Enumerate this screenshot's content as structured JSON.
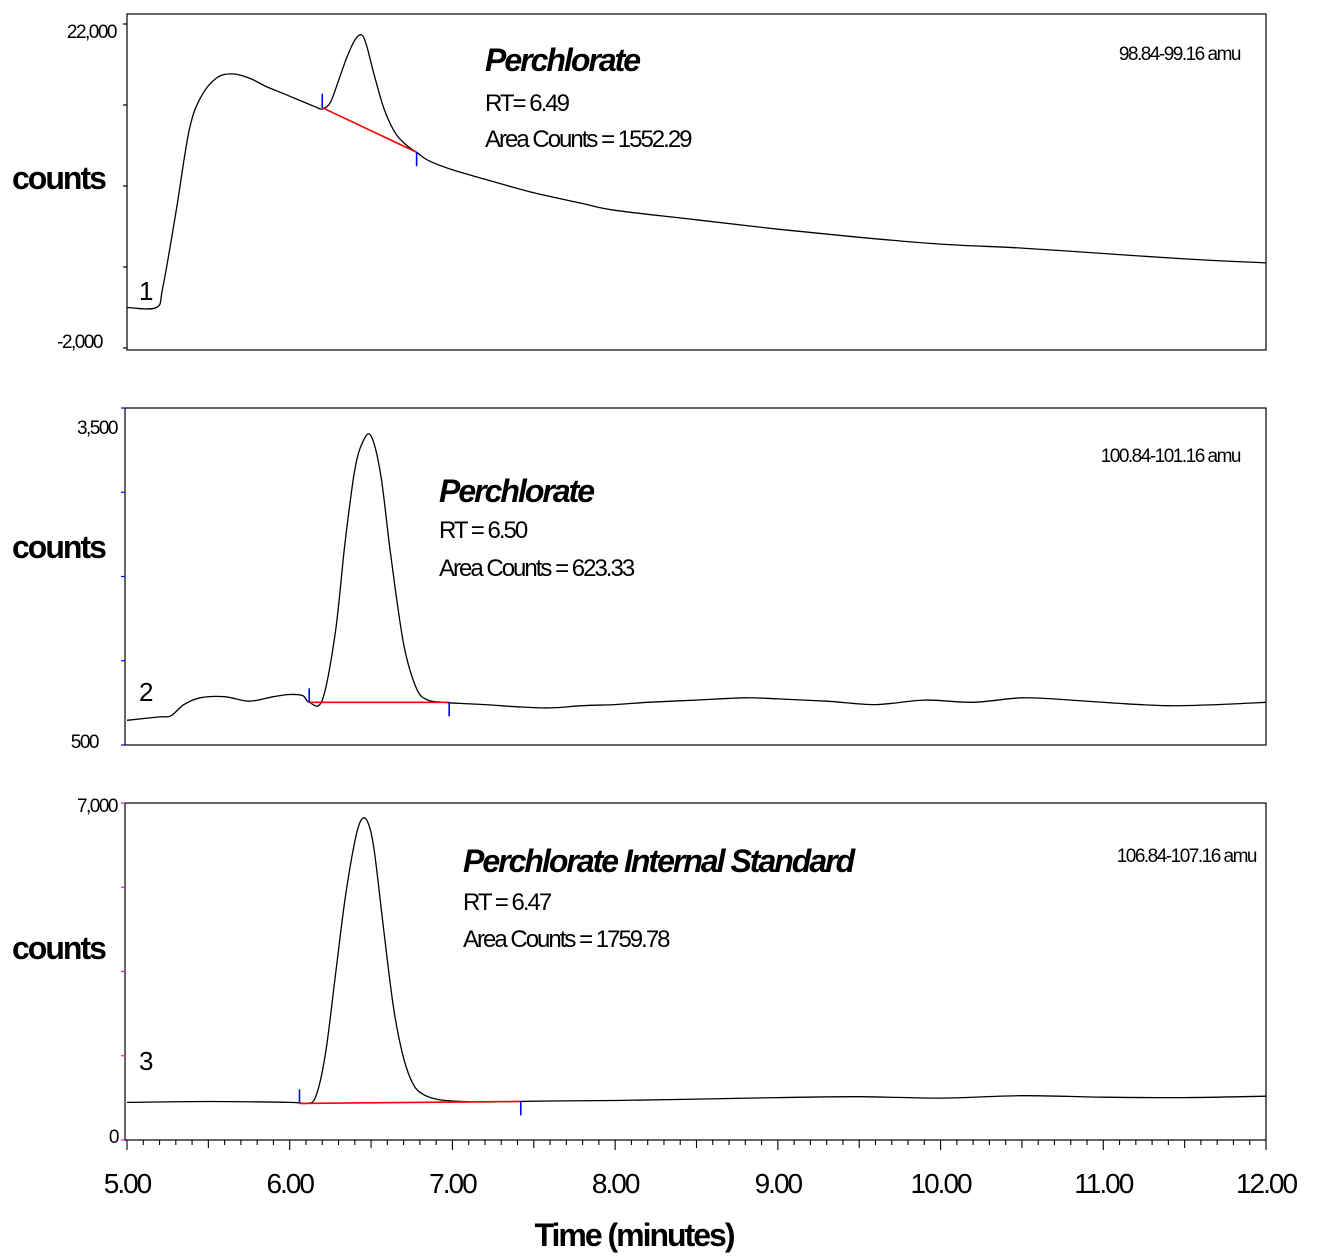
{
  "chart_data": [
    {
      "type": "line",
      "trace_number": "1",
      "mass_range": "98.84-99.16 amu",
      "ylabel": "counts",
      "ylim": [
        -2000,
        22000
      ],
      "ytick_labels": [
        "22,000",
        "-2,000"
      ],
      "xlim": [
        5.0,
        12.0
      ],
      "peak": {
        "name": "Perchlorate",
        "rt_text": "RT=  6.49",
        "area_text": "Area Counts = 1552.29",
        "start": 6.2,
        "end": 6.78,
        "baseline_start": 15800,
        "baseline_end": 12500
      },
      "x": [
        5.0,
        5.18,
        5.22,
        5.3,
        5.38,
        5.45,
        5.55,
        5.65,
        5.75,
        5.85,
        5.95,
        6.05,
        6.15,
        6.2,
        6.25,
        6.3,
        6.35,
        6.4,
        6.44,
        6.47,
        6.52,
        6.58,
        6.65,
        6.72,
        6.78,
        6.85,
        7.0,
        7.2,
        7.5,
        7.8,
        8.0,
        8.5,
        9.0,
        9.5,
        10.0,
        10.5,
        11.0,
        11.5,
        12.0
      ],
      "values": [
        1000,
        1000,
        2500,
        8000,
        14000,
        16500,
        18000,
        18300,
        18000,
        17400,
        16900,
        16400,
        15900,
        15700,
        16200,
        17800,
        19500,
        20800,
        21200,
        20500,
        18200,
        15700,
        13900,
        13000,
        12500,
        11900,
        11200,
        10500,
        9500,
        8700,
        8200,
        7500,
        6800,
        6200,
        5700,
        5400,
        5000,
        4600,
        4300
      ]
    },
    {
      "type": "line",
      "trace_number": "2",
      "mass_range": "100.84-101.16 amu",
      "ylabel": "counts",
      "ylim": [
        500,
        3500
      ],
      "ytick_labels": [
        "3,500",
        "500"
      ],
      "xlim": [
        5.0,
        12.0
      ],
      "peak": {
        "name": "Perchlorate",
        "rt_text": "RT = 6.50",
        "area_text": "Area Counts = 623.33",
        "start": 6.12,
        "end": 6.98,
        "baseline_start": 880,
        "baseline_end": 880
      },
      "x": [
        5.0,
        5.2,
        5.27,
        5.35,
        5.45,
        5.6,
        5.75,
        5.9,
        6.0,
        6.08,
        6.12,
        6.2,
        6.28,
        6.34,
        6.4,
        6.45,
        6.5,
        6.56,
        6.62,
        6.7,
        6.78,
        6.85,
        6.95,
        7.05,
        7.2,
        7.4,
        7.6,
        7.8,
        8.0,
        8.2,
        8.5,
        8.8,
        9.0,
        9.3,
        9.6,
        9.9,
        10.2,
        10.5,
        10.8,
        11.1,
        11.4,
        11.7,
        12.0
      ],
      "values": [
        720,
        750,
        760,
        860,
        920,
        930,
        890,
        930,
        950,
        940,
        880,
        900,
        1500,
        2300,
        2950,
        3200,
        3250,
        2900,
        2200,
        1400,
        1000,
        900,
        880,
        870,
        860,
        840,
        830,
        850,
        860,
        880,
        900,
        920,
        910,
        890,
        860,
        900,
        880,
        920,
        900,
        870,
        850,
        860,
        880
      ]
    },
    {
      "type": "line",
      "trace_number": "3",
      "mass_range": "106.84-107.16 amu",
      "ylabel": "counts",
      "ylim": [
        0,
        7000
      ],
      "ytick_labels": [
        "7,000",
        "0"
      ],
      "xlim": [
        5.0,
        12.0
      ],
      "peak": {
        "name": "Perchlorate Internal Standard",
        "rt_text": "RT = 6.47",
        "area_text": "Area Counts = 1759.78",
        "start": 6.06,
        "end": 7.42,
        "baseline_start": 760,
        "baseline_end": 800
      },
      "x": [
        5.0,
        5.5,
        6.0,
        6.1,
        6.16,
        6.22,
        6.28,
        6.34,
        6.4,
        6.44,
        6.48,
        6.52,
        6.58,
        6.64,
        6.7,
        6.76,
        6.82,
        6.9,
        7.0,
        7.2,
        7.4,
        7.6,
        8.0,
        8.5,
        9.0,
        9.5,
        10.0,
        10.5,
        11.0,
        11.5,
        12.0
      ],
      "values": [
        780,
        800,
        780,
        760,
        900,
        1800,
        3400,
        5000,
        6200,
        6650,
        6600,
        6000,
        4300,
        2700,
        1700,
        1150,
        950,
        850,
        810,
        790,
        800,
        810,
        820,
        850,
        880,
        900,
        870,
        920,
        890,
        880,
        910
      ]
    }
  ],
  "x_axis": {
    "label": "Time (minutes)",
    "tick_labels": [
      "5.00",
      "6.00",
      "7.00",
      "8.00",
      "9.00",
      "10.00",
      "11.00",
      "12.00"
    ]
  }
}
